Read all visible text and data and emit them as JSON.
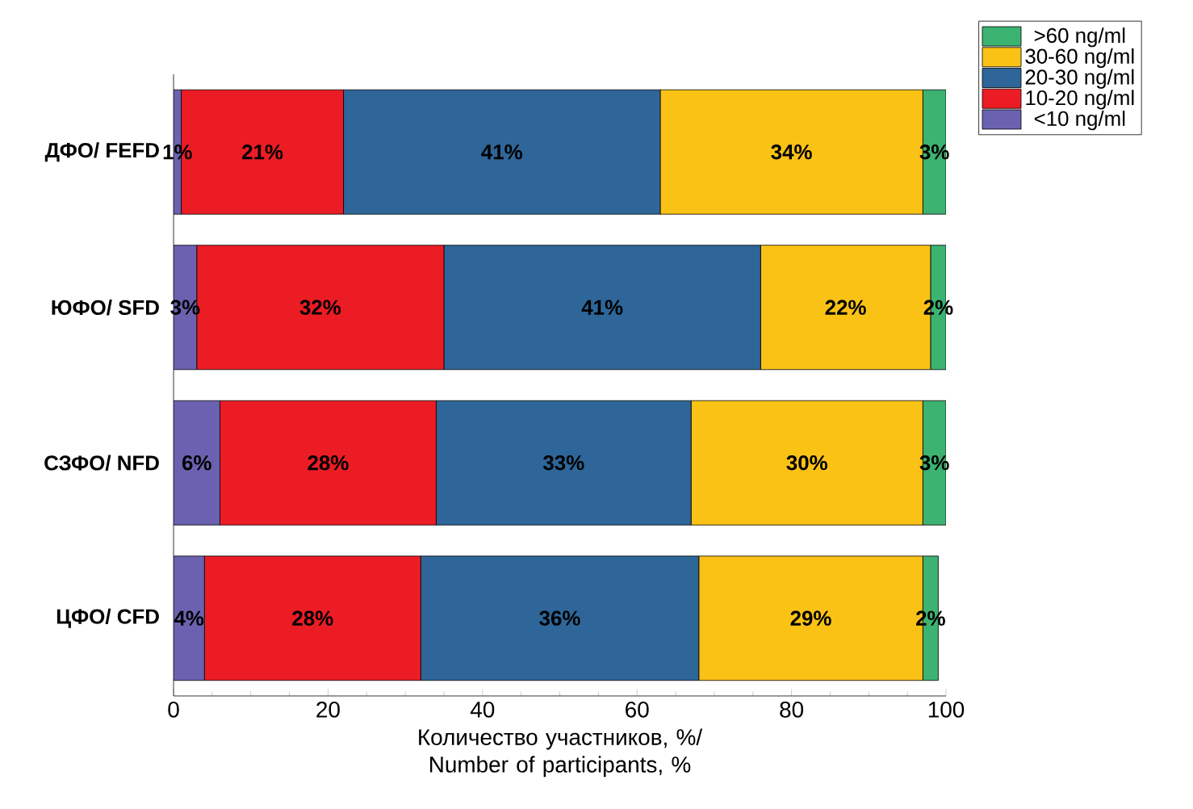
{
  "chart_data": {
    "type": "bar",
    "orientation": "horizontal",
    "stacked": true,
    "categories": [
      "ДФО/ FEFD",
      "ЮФО/ SFD",
      "СЗФО/ NFD",
      "ЦФО/ CFD"
    ],
    "series": [
      {
        "name": "<10 ng/ml",
        "color": "#6a62b0",
        "values": [
          1,
          3,
          6,
          4
        ],
        "value_labels": [
          "1%",
          "3%",
          "6%",
          "4%"
        ]
      },
      {
        "name": "10-20 ng/ml",
        "color": "#ec1c24",
        "values": [
          21,
          32,
          28,
          28
        ],
        "value_labels": [
          "21%",
          "32%",
          "28%",
          "28%"
        ]
      },
      {
        "name": "20-30 ng/ml",
        "color": "#2e6699",
        "values": [
          41,
          41,
          33,
          36
        ],
        "value_labels": [
          "41%",
          "41%",
          "33%",
          "36%"
        ]
      },
      {
        "name": "30-60 ng/ml",
        "color": "#fbc216",
        "values": [
          34,
          22,
          30,
          29
        ],
        "value_labels": [
          "34%",
          "22%",
          "30%",
          "29%"
        ]
      },
      {
        "name": ">60 ng/ml",
        "color": "#3cb371",
        "values": [
          3,
          2,
          3,
          2
        ],
        "value_labels": [
          "3%",
          "2%",
          "3%",
          "2%"
        ]
      }
    ],
    "xlim": [
      0,
      100
    ],
    "xticks": [
      0,
      20,
      40,
      60,
      80,
      100
    ],
    "xlabel": "Количество участников, %/ Number of participants, %",
    "legend": "top right",
    "grid": false
  }
}
